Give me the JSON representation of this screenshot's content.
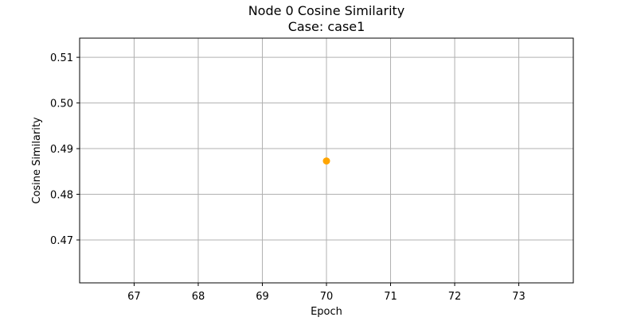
{
  "chart_data": {
    "type": "scatter",
    "title": "Node 0 Cosine Similarity",
    "subtitle": "Case: case1",
    "xlabel": "Epoch",
    "ylabel": "Cosine Similarity",
    "x": [
      70
    ],
    "y": [
      0.4873
    ],
    "xlim": [
      66.15,
      73.85
    ],
    "ylim": [
      0.4606,
      0.5142
    ],
    "xticks": [
      67,
      68,
      69,
      70,
      71,
      72,
      73
    ],
    "yticks": [
      0.47,
      0.48,
      0.49,
      0.5,
      0.51
    ],
    "xtick_labels": [
      "67",
      "68",
      "69",
      "70",
      "71",
      "72",
      "73"
    ],
    "ytick_labels": [
      "0.47",
      "0.48",
      "0.49",
      "0.50",
      "0.51"
    ],
    "grid": true,
    "marker_color": "#ffa500",
    "grid_color": "#b0b0b0"
  }
}
